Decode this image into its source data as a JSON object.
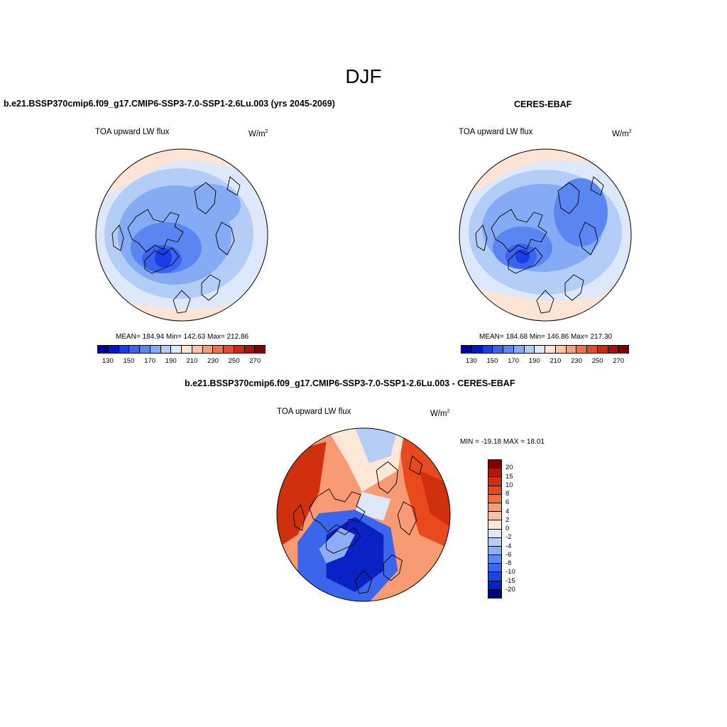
{
  "figure": {
    "title": "DJF"
  },
  "chart_data": [
    {
      "type": "heatmap",
      "projection": "north polar stereographic",
      "title": "b.e21.BSSP370cmip6.f09_g17.CMIP6-SSP3-7.0-SSP1-2.6Lu.003 (yrs 2045-2069)",
      "variable": "TOA upward LW flux",
      "units_base": "W/m",
      "units_exp": "2",
      "stats": "MEAN= 184.94  Min= 142.63  Max= 212.86",
      "colorbar": {
        "colors": [
          "#0000a0",
          "#0018c8",
          "#1a3ee6",
          "#3964f0",
          "#5a86f2",
          "#86abf5",
          "#b4cdf7",
          "#dde9fa",
          "#fde4d4",
          "#fbc4a6",
          "#f89d7b",
          "#f2704e",
          "#e64a2a",
          "#cc2a12",
          "#aa1208",
          "#800000"
        ],
        "tick_labels": [
          "130",
          "150",
          "170",
          "190",
          "210",
          "230",
          "250",
          "270"
        ]
      }
    },
    {
      "type": "heatmap",
      "projection": "north polar stereographic",
      "title": "CERES-EBAF",
      "variable": "TOA upward LW flux",
      "units_base": "W/m",
      "units_exp": "2",
      "stats": "MEAN= 184.68  Min= 146.86  Max= 217.30",
      "colorbar": {
        "colors": [
          "#0000a0",
          "#0018c8",
          "#1a3ee6",
          "#3964f0",
          "#5a86f2",
          "#86abf5",
          "#b4cdf7",
          "#dde9fa",
          "#fde4d4",
          "#fbc4a6",
          "#f89d7b",
          "#f2704e",
          "#e64a2a",
          "#cc2a12",
          "#aa1208",
          "#800000"
        ],
        "tick_labels": [
          "130",
          "150",
          "170",
          "190",
          "210",
          "230",
          "250",
          "270"
        ]
      }
    },
    {
      "type": "heatmap",
      "projection": "north polar stereographic",
      "title": "b.e21.BSSP370cmip6.f09_g17.CMIP6-SSP3-7.0-SSP1-2.6Lu.003 - CERES-EBAF",
      "variable": "TOA upward LW flux",
      "units_base": "W/m",
      "units_exp": "2",
      "stats": "MIN = -19.18 MAX =  18.01",
      "colorbar": {
        "orientation": "vertical",
        "colors": [
          "#800000",
          "#b01a0a",
          "#d0300e",
          "#e84a1e",
          "#f2703f",
          "#f89b74",
          "#fbc3a2",
          "#fde7d6",
          "#dde9fa",
          "#b6cef7",
          "#8daef4",
          "#5d88f0",
          "#3a66ec",
          "#1c44e0",
          "#0a22c4",
          "#000086"
        ],
        "tick_labels": [
          "20",
          "15",
          "10",
          "8",
          "6",
          "4",
          "2",
          "0",
          "-2",
          "-4",
          "-6",
          "-8",
          "-10",
          "-15",
          "-20"
        ]
      }
    }
  ]
}
